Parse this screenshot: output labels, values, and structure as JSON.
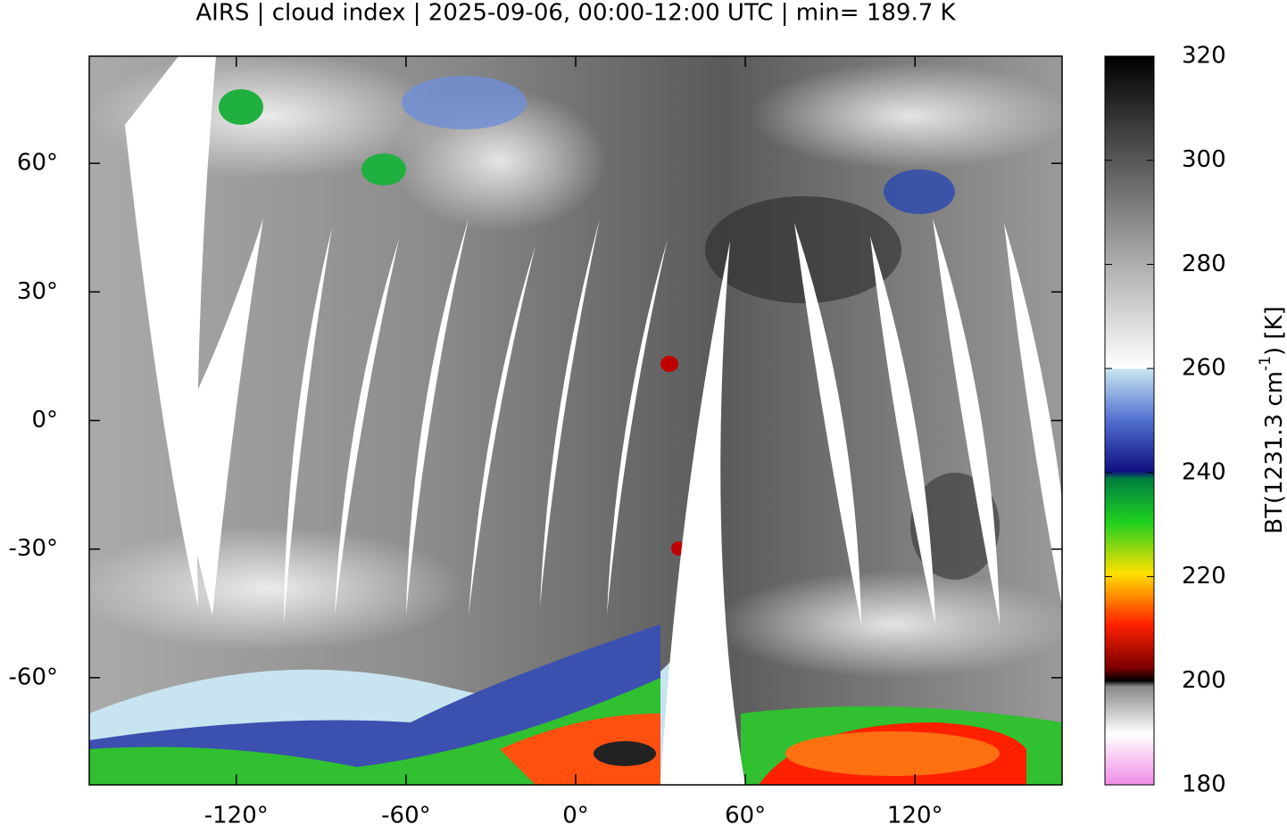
{
  "title": "AIRS | cloud index | 2025-09-06, 00:00-12:00 UTC | min= 189.7 K",
  "map": {
    "xlim": [
      -172,
      172
    ],
    "ylim": [
      -85,
      85
    ],
    "xticks": [
      {
        "value": -120,
        "label": "-120°"
      },
      {
        "value": -60,
        "label": "-60°"
      },
      {
        "value": 0,
        "label": "0°"
      },
      {
        "value": 60,
        "label": "60°"
      },
      {
        "value": 120,
        "label": "120°"
      }
    ],
    "yticks": [
      {
        "value": 60,
        "label": "60°"
      },
      {
        "value": 30,
        "label": "30°"
      },
      {
        "value": 0,
        "label": "0°"
      },
      {
        "value": -30,
        "label": "-30°"
      },
      {
        "value": -60,
        "label": "-60°"
      }
    ]
  },
  "colorbar": {
    "lim": [
      180,
      320
    ],
    "ticks": [
      180,
      200,
      220,
      240,
      260,
      280,
      300,
      320
    ],
    "label": {
      "text": "BT(1231.3 cm",
      "sup": "-1",
      "end": ") [K]"
    }
  }
}
